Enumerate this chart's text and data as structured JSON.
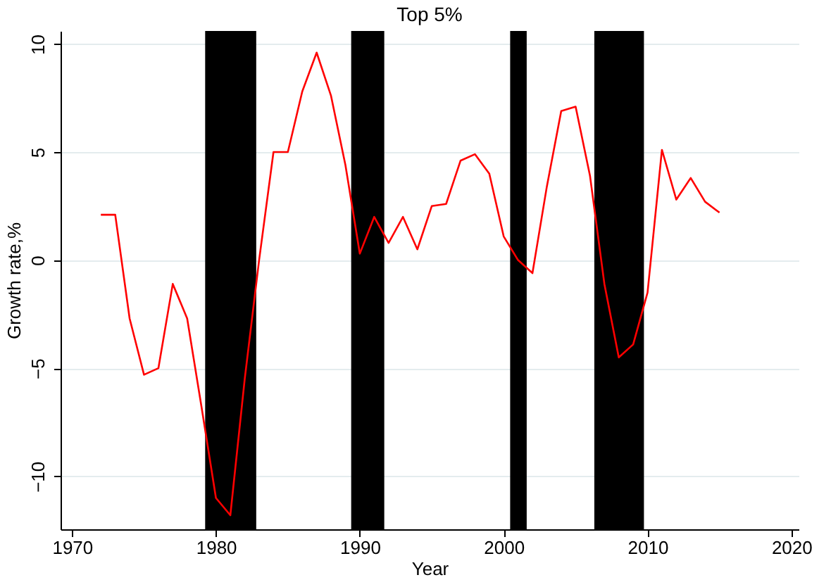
{
  "chart_data": {
    "type": "line",
    "title": "Top 5%",
    "xlabel": "Year",
    "ylabel": "Growth rate,%",
    "x": [
      1972,
      1973,
      1974,
      1975,
      1976,
      1977,
      1978,
      1979,
      1980,
      1981,
      1982,
      1983,
      1984,
      1985,
      1986,
      1987,
      1988,
      1989,
      1990,
      1991,
      1992,
      1993,
      1994,
      1995,
      1996,
      1997,
      1998,
      1999,
      2000,
      2001,
      2002,
      2003,
      2004,
      2005,
      2006,
      2007,
      2008,
      2009,
      2010,
      2011,
      2012,
      2013,
      2014,
      2015
    ],
    "series": [
      {
        "color": "#ff0000",
        "values": [
          2.1,
          2.1,
          -2.7,
          -5.3,
          -5.0,
          -1.1,
          -2.7,
          -6.8,
          -11.0,
          -11.8,
          -5.5,
          0.0,
          5.0,
          5.0,
          7.8,
          9.6,
          7.6,
          4.4,
          0.3,
          2.0,
          0.8,
          2.0,
          0.5,
          2.5,
          2.6,
          4.6,
          4.9,
          4.0,
          1.1,
          0.0,
          -0.6,
          3.4,
          6.9,
          7.1,
          3.9,
          -1.1,
          -4.5,
          -3.9,
          -1.5,
          5.1,
          2.8,
          3.8,
          2.7,
          2.2
        ]
      }
    ],
    "bands": [
      {
        "axis": "x",
        "from": 1979.25,
        "to": 1982.8,
        "color": "#000000"
      },
      {
        "axis": "x",
        "from": 1989.4,
        "to": 1991.7,
        "color": "#000000"
      },
      {
        "axis": "x",
        "from": 2000.45,
        "to": 2001.6,
        "color": "#000000"
      },
      {
        "axis": "x",
        "from": 2006.3,
        "to": 2009.75,
        "color": "#000000"
      }
    ],
    "xlim": [
      1969.2,
      2020.5
    ],
    "xticks": [
      1970,
      1980,
      1990,
      2000,
      2010,
      2020
    ],
    "ylim": [
      -12.45,
      10.6
    ],
    "yticks": [
      -10,
      -5,
      0,
      5,
      10
    ],
    "grid": "y",
    "marker": "none",
    "line_style": "solid"
  }
}
